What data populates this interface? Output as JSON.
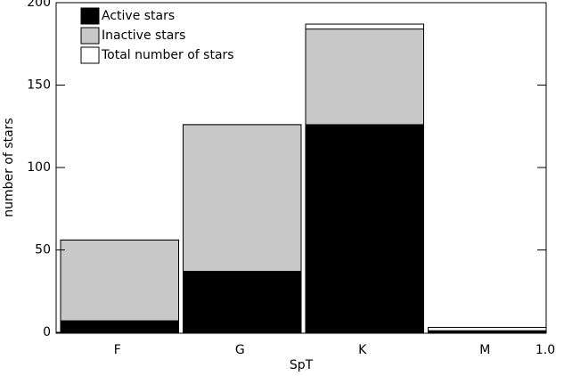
{
  "chart_data": {
    "type": "bar",
    "xlabel": "SpT",
    "ylabel": "number of stars",
    "categories": [
      "F",
      "G",
      "K",
      "M"
    ],
    "x_end_label": "1.0",
    "series": [
      {
        "name": "Active stars",
        "color": "#000000",
        "values": [
          7,
          37,
          126,
          1
        ]
      },
      {
        "name": "Inactive stars",
        "color": "#c8c8c8",
        "values": [
          49,
          89,
          58,
          0
        ]
      },
      {
        "name": "Total number of stars",
        "color": "#ffffff",
        "values": [
          56,
          126,
          187,
          3
        ]
      }
    ],
    "ylim": [
      0,
      200
    ],
    "yticks": [
      0,
      50,
      100,
      150,
      200
    ]
  }
}
